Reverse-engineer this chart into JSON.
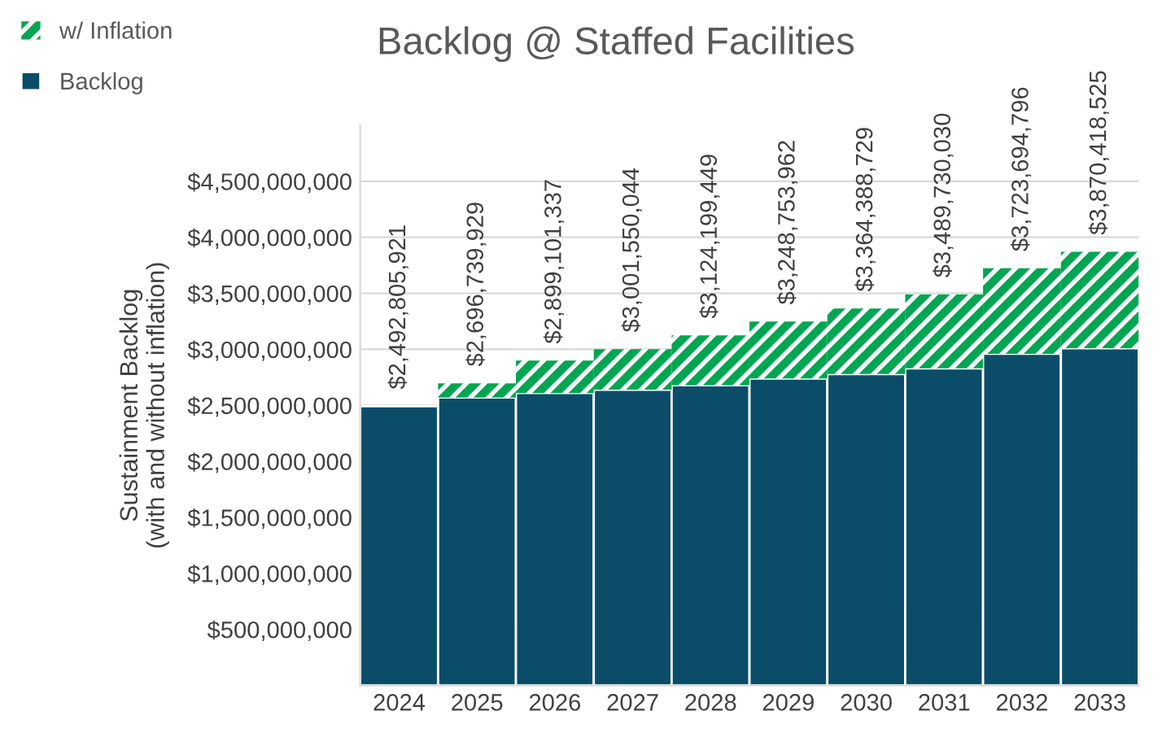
{
  "chart_data": {
    "type": "bar",
    "title": "Backlog @ Staffed Facilities",
    "ylabel": "Sustainment Backlog\n(with and without inflation)",
    "categories": [
      "2024",
      "2025",
      "2026",
      "2027",
      "2028",
      "2029",
      "2030",
      "2031",
      "2032",
      "2033"
    ],
    "stacked": true,
    "series": [
      {
        "name": "Backlog",
        "color": "#0b4d68",
        "values": [
          2492805921,
          2570000000,
          2610000000,
          2640000000,
          2680000000,
          2740000000,
          2780000000,
          2830000000,
          2960000000,
          3010000000
        ]
      },
      {
        "name": "w/ Inflation",
        "color": "#00a651",
        "values": [
          null,
          126739929,
          289101337,
          361550044,
          444199449,
          508753962,
          584388729,
          659730030,
          763694796,
          860418525
        ]
      }
    ],
    "totals": [
      "$2,492,805,921",
      "$2,696,739,929",
      "$2,899,101,337",
      "$3,001,550,044",
      "$3,124,199,449",
      "$3,248,753,962",
      "$3,364,388,729",
      "$3,489,730,030",
      "$3,723,694,796",
      "$3,870,418,525"
    ],
    "ylim": [
      0,
      5000000000
    ],
    "yticks": [
      {
        "value": 500000000,
        "label": "$500,000,000"
      },
      {
        "value": 1000000000,
        "label": "$1,000,000,000"
      },
      {
        "value": 1500000000,
        "label": "$1,500,000,000"
      },
      {
        "value": 2000000000,
        "label": "$2,000,000,000"
      },
      {
        "value": 2500000000,
        "label": "$2,500,000,000"
      },
      {
        "value": 3000000000,
        "label": "$3,000,000,000"
      },
      {
        "value": 3500000000,
        "label": "$3,500,000,000"
      },
      {
        "value": 4000000000,
        "label": "$4,000,000,000"
      },
      {
        "value": 4500000000,
        "label": "$4,500,000,000"
      }
    ],
    "grid": "y",
    "legend": "top left"
  }
}
